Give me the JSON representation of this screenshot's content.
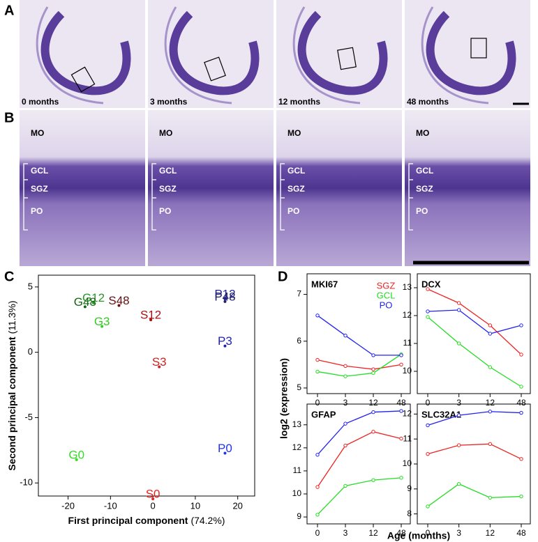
{
  "panel_a": {
    "letter": "A",
    "images": [
      "0 months",
      "3 months",
      "12 months",
      "48 months"
    ]
  },
  "panel_b": {
    "letter": "B",
    "layers": [
      "MO",
      "GCL",
      "SGZ",
      "PO"
    ]
  },
  "panel_c": {
    "letter": "C"
  },
  "panel_d": {
    "letter": "D",
    "ylabel": "log2 (expression)",
    "xlabel": "Age (months)"
  },
  "chart_data": [
    {
      "type": "scatter",
      "xlabel": "First principal component",
      "xlabel_note": "(74.2%)",
      "ylabel": "Second principal component",
      "ylabel_note": "(11.3%)",
      "xlim": [
        -27,
        24
      ],
      "ylim": [
        -11,
        5.9
      ],
      "xticks": [
        -20,
        -10,
        0,
        10,
        20
      ],
      "yticks": [
        -10,
        -5,
        0,
        5
      ],
      "points": [
        {
          "label": "G0",
          "x": -18,
          "y": -7.9,
          "color": "#33dd22"
        },
        {
          "label": "G3",
          "x": -12,
          "y": 2.3,
          "color": "#33cc22"
        },
        {
          "label": "G12",
          "x": -14,
          "y": 4.1,
          "color": "#229922"
        },
        {
          "label": "G48",
          "x": -16,
          "y": 3.8,
          "color": "#116611"
        },
        {
          "label": "S0",
          "x": 0,
          "y": -10.9,
          "color": "#ee2222"
        },
        {
          "label": "S3",
          "x": 1.5,
          "y": -0.8,
          "color": "#cc2222"
        },
        {
          "label": "S12",
          "x": -0.5,
          "y": 2.8,
          "color": "#aa1111"
        },
        {
          "label": "S48",
          "x": -8,
          "y": 3.9,
          "color": "#661111"
        },
        {
          "label": "P0",
          "x": 17,
          "y": -7.4,
          "color": "#2233ee"
        },
        {
          "label": "P3",
          "x": 17,
          "y": 0.8,
          "color": "#2222bb"
        },
        {
          "label": "P12",
          "x": 17,
          "y": 4.4,
          "color": "#222299"
        },
        {
          "label": "P48",
          "x": 17,
          "y": 4.2,
          "color": "#222266"
        }
      ]
    },
    {
      "type": "line",
      "title": "MKI67",
      "legend": true,
      "categories": [
        "0",
        "3",
        "12",
        "48"
      ],
      "ylim": [
        4.88,
        7.44
      ],
      "yticks": [
        5,
        6,
        7
      ],
      "series": [
        {
          "name": "SGZ",
          "color": "#ee2222",
          "values": [
            5.6,
            5.47,
            5.4,
            5.5
          ]
        },
        {
          "name": "GCL",
          "color": "#22dd22",
          "values": [
            5.35,
            5.25,
            5.32,
            5.72
          ]
        },
        {
          "name": "PO",
          "color": "#2222ee",
          "values": [
            6.55,
            6.12,
            5.7,
            5.7
          ]
        }
      ]
    },
    {
      "type": "line",
      "title": "DCX",
      "legend": false,
      "categories": [
        "0",
        "3",
        "12",
        "48"
      ],
      "ylim": [
        9.2,
        13.5
      ],
      "yticks": [
        10,
        11,
        12,
        13
      ],
      "series": [
        {
          "name": "SGZ",
          "color": "#ee2222",
          "values": [
            12.95,
            12.45,
            11.65,
            10.6
          ]
        },
        {
          "name": "GCL",
          "color": "#22dd22",
          "values": [
            11.95,
            11.0,
            10.15,
            9.45
          ]
        },
        {
          "name": "PO",
          "color": "#2222ee",
          "values": [
            12.15,
            12.2,
            11.35,
            11.65
          ]
        }
      ]
    },
    {
      "type": "line",
      "title": "GFAP",
      "legend": false,
      "categories": [
        "0",
        "3",
        "12",
        "48"
      ],
      "ylim": [
        8.7,
        13.9
      ],
      "yticks": [
        9,
        10,
        11,
        12,
        13
      ],
      "series": [
        {
          "name": "SGZ",
          "color": "#ee2222",
          "values": [
            10.3,
            12.1,
            12.7,
            12.4
          ]
        },
        {
          "name": "GCL",
          "color": "#22dd22",
          "values": [
            9.1,
            10.35,
            10.6,
            10.7
          ]
        },
        {
          "name": "PO",
          "color": "#2222ee",
          "values": [
            11.7,
            13.05,
            13.55,
            13.6
          ]
        }
      ]
    },
    {
      "type": "line",
      "title": "SLC32A1",
      "legend": false,
      "categories": [
        "0",
        "3",
        "12",
        "48"
      ],
      "ylim": [
        7.6,
        12.4
      ],
      "yticks": [
        8,
        9,
        10,
        11,
        12
      ],
      "series": [
        {
          "name": "SGZ",
          "color": "#ee2222",
          "values": [
            10.4,
            10.75,
            10.8,
            10.2
          ]
        },
        {
          "name": "GCL",
          "color": "#22dd22",
          "values": [
            8.3,
            9.2,
            8.65,
            8.7
          ]
        },
        {
          "name": "PO",
          "color": "#2222ee",
          "values": [
            11.55,
            11.95,
            12.1,
            12.05
          ]
        }
      ]
    }
  ]
}
